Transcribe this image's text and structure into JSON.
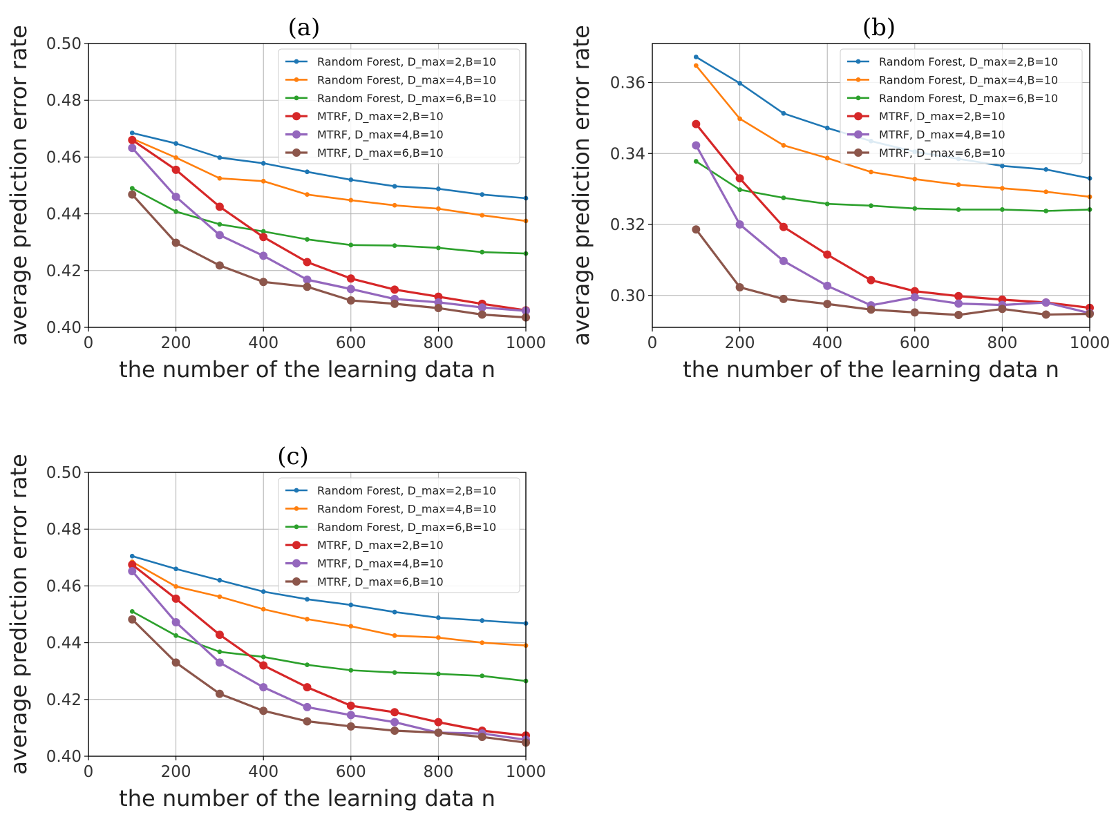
{
  "chart_data": [
    {
      "type": "line",
      "title": "(a)",
      "xlabel": "the number of the learning data n",
      "ylabel": "average prediction error rate",
      "xlim": [
        0,
        1000
      ],
      "ylim": [
        0.4,
        0.5
      ],
      "xticks": [
        0,
        200,
        400,
        600,
        800,
        1000
      ],
      "xtick_labels": [
        "0",
        "200",
        "400",
        "600",
        "800",
        "1000"
      ],
      "yticks": [
        0.4,
        0.42,
        0.44,
        0.46,
        0.48,
        0.5
      ],
      "ytick_labels": [
        "0.40",
        "0.42",
        "0.44",
        "0.46",
        "0.48",
        "0.50"
      ],
      "grid": true,
      "legend_position": "top-right",
      "x": [
        100,
        200,
        300,
        400,
        500,
        600,
        700,
        800,
        900,
        1000
      ],
      "series": [
        {
          "name": "Random Forest, D_max=2,B=10",
          "color": "#1f77b4",
          "marker": "small",
          "values": [
            0.4685,
            0.4648,
            0.4598,
            0.4578,
            0.4548,
            0.452,
            0.4497,
            0.4488,
            0.4468,
            0.4455
          ]
        },
        {
          "name": "Random Forest, D_max=4,B=10",
          "color": "#ff7f0e",
          "marker": "small",
          "values": [
            0.4665,
            0.4598,
            0.4525,
            0.4515,
            0.4468,
            0.4448,
            0.443,
            0.4418,
            0.4395,
            0.4375
          ]
        },
        {
          "name": "Random Forest, D_max=6,B=10",
          "color": "#2ca02c",
          "marker": "small",
          "values": [
            0.449,
            0.4408,
            0.4363,
            0.4338,
            0.431,
            0.429,
            0.4288,
            0.428,
            0.4265,
            0.426
          ]
        },
        {
          "name": "MTRF, D_max=2,B=10",
          "color": "#d62728",
          "marker": "large",
          "values": [
            0.466,
            0.4555,
            0.4425,
            0.4318,
            0.423,
            0.4172,
            0.4133,
            0.4108,
            0.4083,
            0.406
          ]
        },
        {
          "name": "MTRF, D_max=4,B=10",
          "color": "#9467bd",
          "marker": "large",
          "values": [
            0.4632,
            0.446,
            0.4325,
            0.4252,
            0.4168,
            0.4135,
            0.41,
            0.4088,
            0.407,
            0.4058
          ]
        },
        {
          "name": "MTRF, D_max=6,B=10",
          "color": "#8c564b",
          "marker": "large",
          "values": [
            0.4468,
            0.4298,
            0.4218,
            0.416,
            0.4143,
            0.4095,
            0.4083,
            0.4068,
            0.4045,
            0.4035
          ]
        }
      ]
    },
    {
      "type": "line",
      "title": "(b)",
      "xlabel": "the number of the learning data n",
      "ylabel": "average prediction error rate",
      "xlim": [
        0,
        1000
      ],
      "ylim": [
        0.291,
        0.371
      ],
      "xticks": [
        0,
        200,
        400,
        600,
        800,
        1000
      ],
      "xtick_labels": [
        "0",
        "200",
        "400",
        "600",
        "800",
        "1000"
      ],
      "yticks": [
        0.3,
        0.32,
        0.34,
        0.36
      ],
      "ytick_labels": [
        "0.30",
        "0.32",
        "0.34",
        "0.36"
      ],
      "grid": true,
      "legend_position": "top-right",
      "x": [
        100,
        200,
        300,
        400,
        500,
        600,
        700,
        800,
        900,
        1000
      ],
      "series": [
        {
          "name": "Random Forest, D_max=2,B=10",
          "color": "#1f77b4",
          "marker": "small",
          "values": [
            0.3672,
            0.3598,
            0.3513,
            0.3472,
            0.3435,
            0.3405,
            0.3385,
            0.3365,
            0.3355,
            0.333
          ]
        },
        {
          "name": "Random Forest, D_max=4,B=10",
          "color": "#ff7f0e",
          "marker": "small",
          "values": [
            0.3648,
            0.3498,
            0.3423,
            0.3387,
            0.3348,
            0.3328,
            0.3312,
            0.3302,
            0.3292,
            0.3278
          ]
        },
        {
          "name": "Random Forest, D_max=6,B=10",
          "color": "#2ca02c",
          "marker": "small",
          "values": [
            0.3378,
            0.3298,
            0.3275,
            0.3258,
            0.3253,
            0.3245,
            0.3242,
            0.3242,
            0.3238,
            0.3242
          ]
        },
        {
          "name": "MTRF, D_max=2,B=10",
          "color": "#d62728",
          "marker": "large",
          "values": [
            0.3483,
            0.333,
            0.3193,
            0.3115,
            0.3043,
            0.3012,
            0.2998,
            0.2988,
            0.298,
            0.2965
          ]
        },
        {
          "name": "MTRF, D_max=4,B=10",
          "color": "#9467bd",
          "marker": "large",
          "values": [
            0.3423,
            0.32,
            0.3097,
            0.3027,
            0.2972,
            0.2995,
            0.2977,
            0.2973,
            0.298,
            0.295
          ]
        },
        {
          "name": "MTRF, D_max=6,B=10",
          "color": "#8c564b",
          "marker": "large",
          "values": [
            0.3186,
            0.3023,
            0.299,
            0.2976,
            0.296,
            0.2952,
            0.2945,
            0.2962,
            0.2946,
            0.2948
          ]
        }
      ]
    },
    {
      "type": "line",
      "title": "(c)",
      "xlabel": "the number of the learning data n",
      "ylabel": "average prediction error rate",
      "xlim": [
        0,
        1000
      ],
      "ylim": [
        0.4,
        0.5
      ],
      "xticks": [
        0,
        200,
        400,
        600,
        800,
        1000
      ],
      "xtick_labels": [
        "0",
        "200",
        "400",
        "600",
        "800",
        "1000"
      ],
      "yticks": [
        0.4,
        0.42,
        0.44,
        0.46,
        0.48,
        0.5
      ],
      "ytick_labels": [
        "0.40",
        "0.42",
        "0.44",
        "0.46",
        "0.48",
        "0.50"
      ],
      "grid": true,
      "legend_position": "top-right",
      "x": [
        100,
        200,
        300,
        400,
        500,
        600,
        700,
        800,
        900,
        1000
      ],
      "series": [
        {
          "name": "Random Forest, D_max=2,B=10",
          "color": "#1f77b4",
          "marker": "small",
          "values": [
            0.4705,
            0.466,
            0.462,
            0.458,
            0.4553,
            0.4533,
            0.4508,
            0.4488,
            0.4478,
            0.4468
          ]
        },
        {
          "name": "Random Forest, D_max=4,B=10",
          "color": "#ff7f0e",
          "marker": "small",
          "values": [
            0.4685,
            0.4598,
            0.4562,
            0.4518,
            0.4483,
            0.4458,
            0.4425,
            0.4418,
            0.44,
            0.439
          ]
        },
        {
          "name": "Random Forest, D_max=6,B=10",
          "color": "#2ca02c",
          "marker": "small",
          "values": [
            0.451,
            0.4425,
            0.4368,
            0.435,
            0.4322,
            0.4303,
            0.4295,
            0.429,
            0.4283,
            0.4265
          ]
        },
        {
          "name": "MTRF, D_max=2,B=10",
          "color": "#d62728",
          "marker": "large",
          "values": [
            0.4675,
            0.4555,
            0.4428,
            0.432,
            0.4243,
            0.4178,
            0.4155,
            0.412,
            0.409,
            0.4073
          ]
        },
        {
          "name": "MTRF, D_max=4,B=10",
          "color": "#9467bd",
          "marker": "large",
          "values": [
            0.4652,
            0.4472,
            0.433,
            0.4243,
            0.4173,
            0.4145,
            0.412,
            0.4083,
            0.408,
            0.4058
          ]
        },
        {
          "name": "MTRF, D_max=6,B=10",
          "color": "#8c564b",
          "marker": "large",
          "values": [
            0.4482,
            0.433,
            0.422,
            0.416,
            0.4123,
            0.4105,
            0.409,
            0.4083,
            0.4068,
            0.4048
          ]
        }
      ]
    }
  ]
}
